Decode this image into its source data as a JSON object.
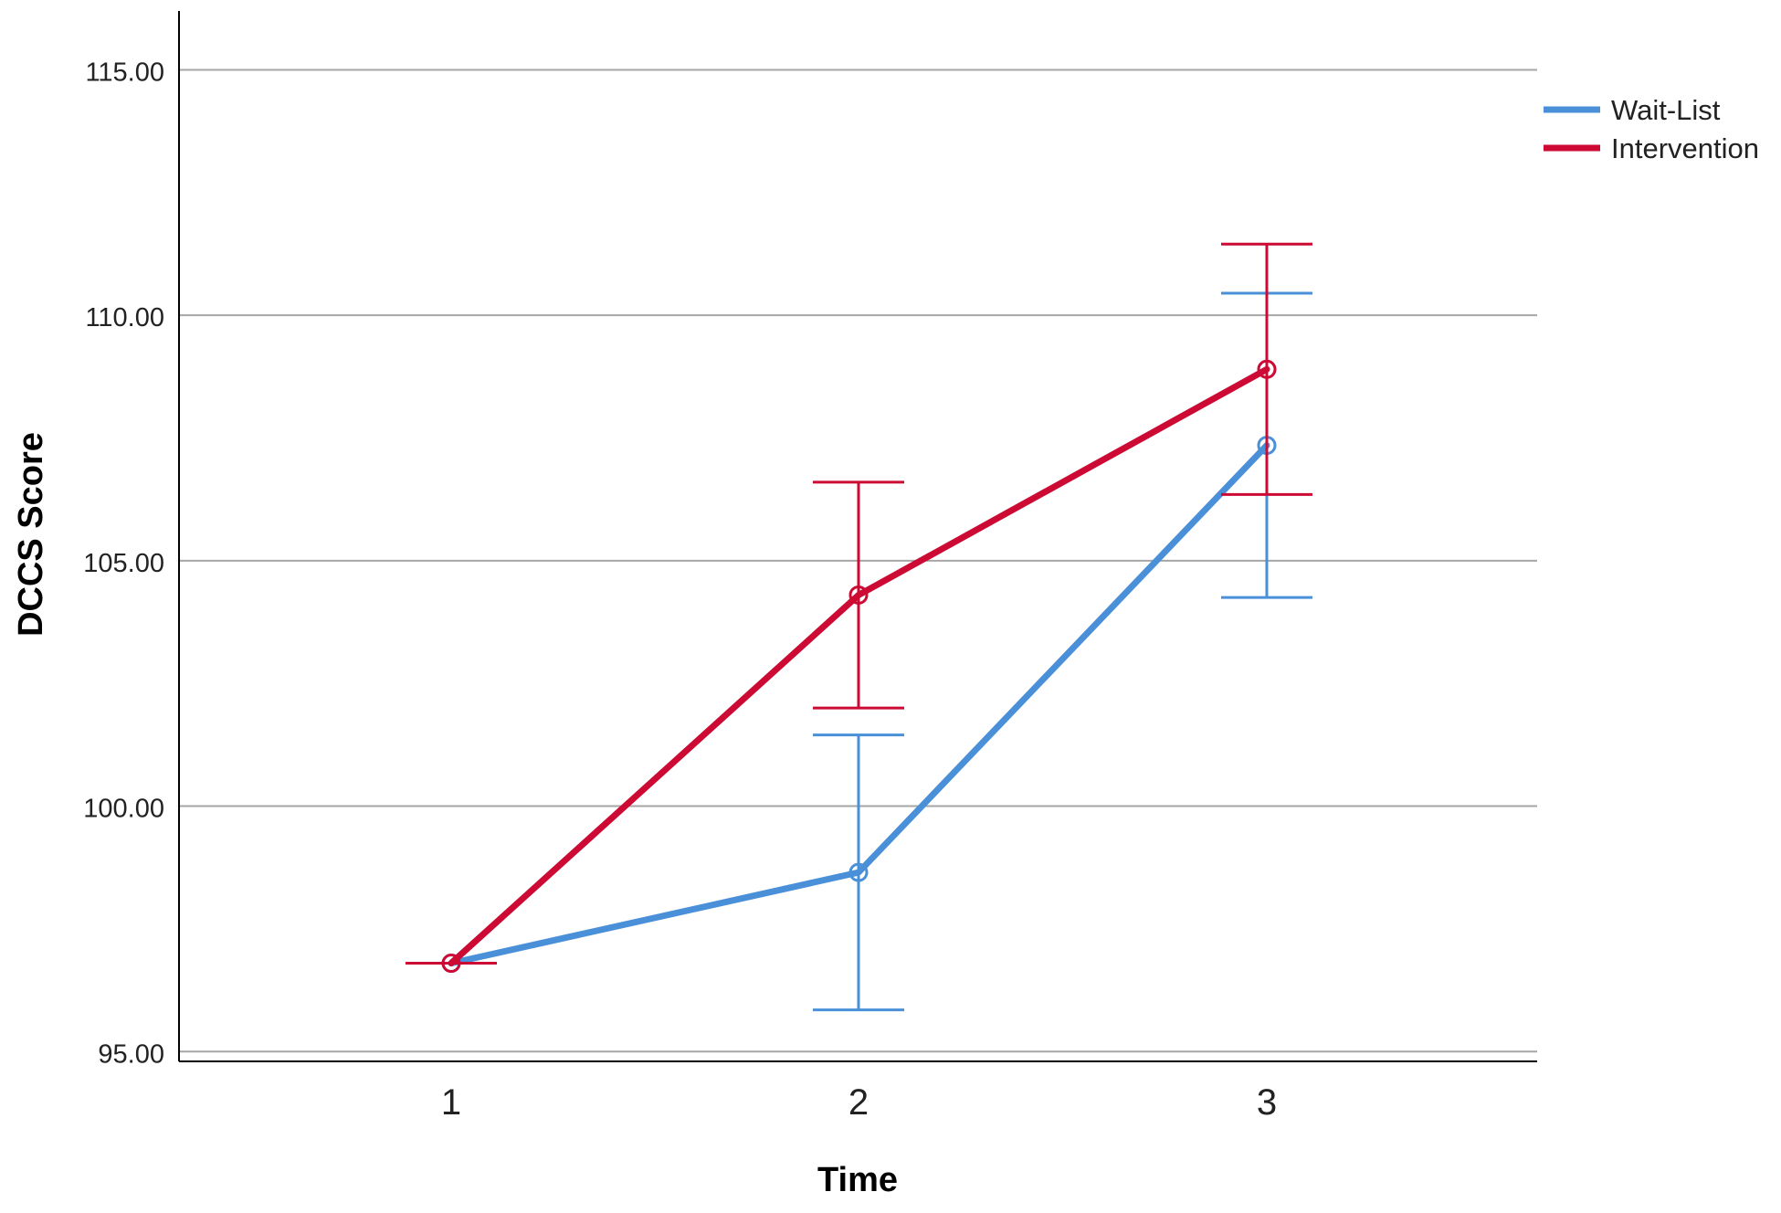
{
  "chart_data": {
    "type": "line",
    "title": "",
    "xlabel": "Time",
    "ylabel": "DCCS Score",
    "x": [
      "1",
      "2",
      "3"
    ],
    "y_ticks": [
      "95.00",
      "100.00",
      "105.00",
      "110.00",
      "115.00"
    ],
    "ylim": [
      94.8,
      116.2
    ],
    "grid": true,
    "legend": "top-right",
    "series": [
      {
        "name": "Wait-List",
        "color": "#4a90d9",
        "values": [
          96.8,
          98.65,
          107.35
        ],
        "error_low": [
          96.8,
          95.85,
          104.25
        ],
        "error_high": [
          96.8,
          101.45,
          110.45
        ]
      },
      {
        "name": "Intervention",
        "color": "#cc0a33",
        "values": [
          96.8,
          104.3,
          108.9
        ],
        "error_low": [
          96.8,
          102.0,
          106.35
        ],
        "error_high": [
          96.8,
          106.6,
          111.45
        ]
      }
    ]
  }
}
